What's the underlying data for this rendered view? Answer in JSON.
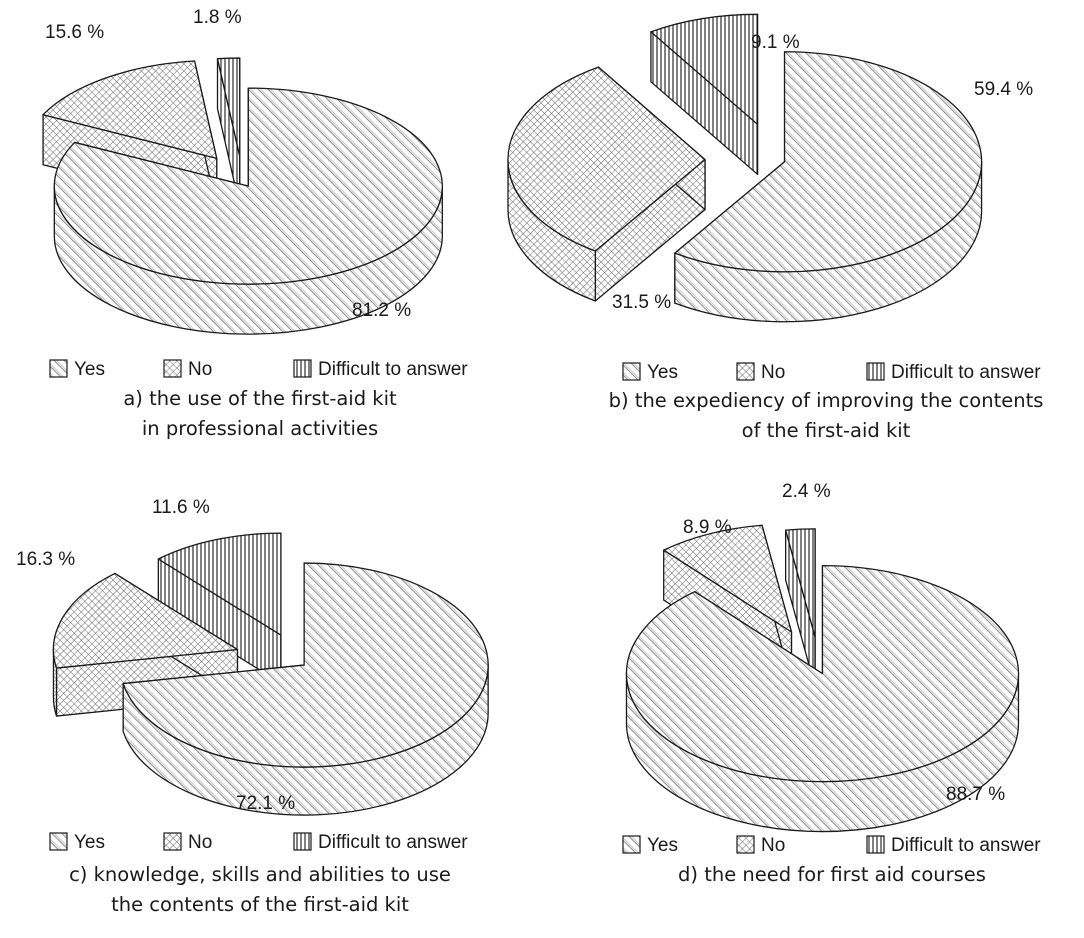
{
  "legend_labels": [
    "Yes",
    "No",
    "Difficult to answer"
  ],
  "colors": {
    "ink": "#1a1a1a",
    "background": "#ffffff"
  },
  "chart_data": [
    {
      "type": "pie",
      "style": "3d-exploded",
      "caption": [
        "a) the use of the first-aid kit",
        "in professional activities"
      ],
      "slices": [
        {
          "label": "Yes",
          "value": 81.2,
          "value_label": "81.2 %",
          "pattern": "diagonal-hatch"
        },
        {
          "label": "No",
          "value": 15.6,
          "value_label": "15.6 %",
          "pattern": "crosshatch"
        },
        {
          "label": "Difficult to answer",
          "value": 1.8,
          "value_label": "1.8 %",
          "pattern": "vertical-lines"
        }
      ],
      "legend": [
        "Yes",
        "No",
        "Difficult to answer"
      ],
      "legend_position": "bottom"
    },
    {
      "type": "pie",
      "style": "3d-exploded",
      "caption": [
        "b) the expediency of improving the contents",
        "of the first-aid kit"
      ],
      "slices": [
        {
          "label": "Yes",
          "value": 59.4,
          "value_label": "59.4 %",
          "pattern": "diagonal-hatch"
        },
        {
          "label": "No",
          "value": 31.5,
          "value_label": "31.5 %",
          "pattern": "crosshatch"
        },
        {
          "label": "Difficult to answer",
          "value": 9.1,
          "value_label": "9.1 %",
          "pattern": "vertical-lines"
        }
      ],
      "legend": [
        "Yes",
        "No",
        "Difficult to answer"
      ],
      "legend_position": "bottom"
    },
    {
      "type": "pie",
      "style": "3d-exploded",
      "caption": [
        "c) knowledge, skills and abilities to use",
        "the contents of the first-aid kit"
      ],
      "slices": [
        {
          "label": "Yes",
          "value": 72.1,
          "value_label": "72.1 %",
          "pattern": "diagonal-hatch"
        },
        {
          "label": "No",
          "value": 16.3,
          "value_label": "16.3 %",
          "pattern": "crosshatch"
        },
        {
          "label": "Difficult to answer",
          "value": 11.6,
          "value_label": "11.6 %",
          "pattern": "vertical-lines"
        }
      ],
      "legend": [
        "Yes",
        "No",
        "Difficult to answer"
      ],
      "legend_position": "bottom"
    },
    {
      "type": "pie",
      "style": "3d-exploded",
      "caption": [
        "d) the need for first aid courses"
      ],
      "slices": [
        {
          "label": "Yes",
          "value": 88.7,
          "value_label": "88.7 %",
          "pattern": "diagonal-hatch"
        },
        {
          "label": "No",
          "value": 8.9,
          "value_label": "8.9 %",
          "pattern": "crosshatch"
        },
        {
          "label": "Difficult to answer",
          "value": 2.4,
          "value_label": "2.4 %",
          "pattern": "vertical-lines"
        }
      ],
      "legend": [
        "Yes",
        "No",
        "Difficult to answer"
      ],
      "legend_position": "bottom"
    }
  ]
}
